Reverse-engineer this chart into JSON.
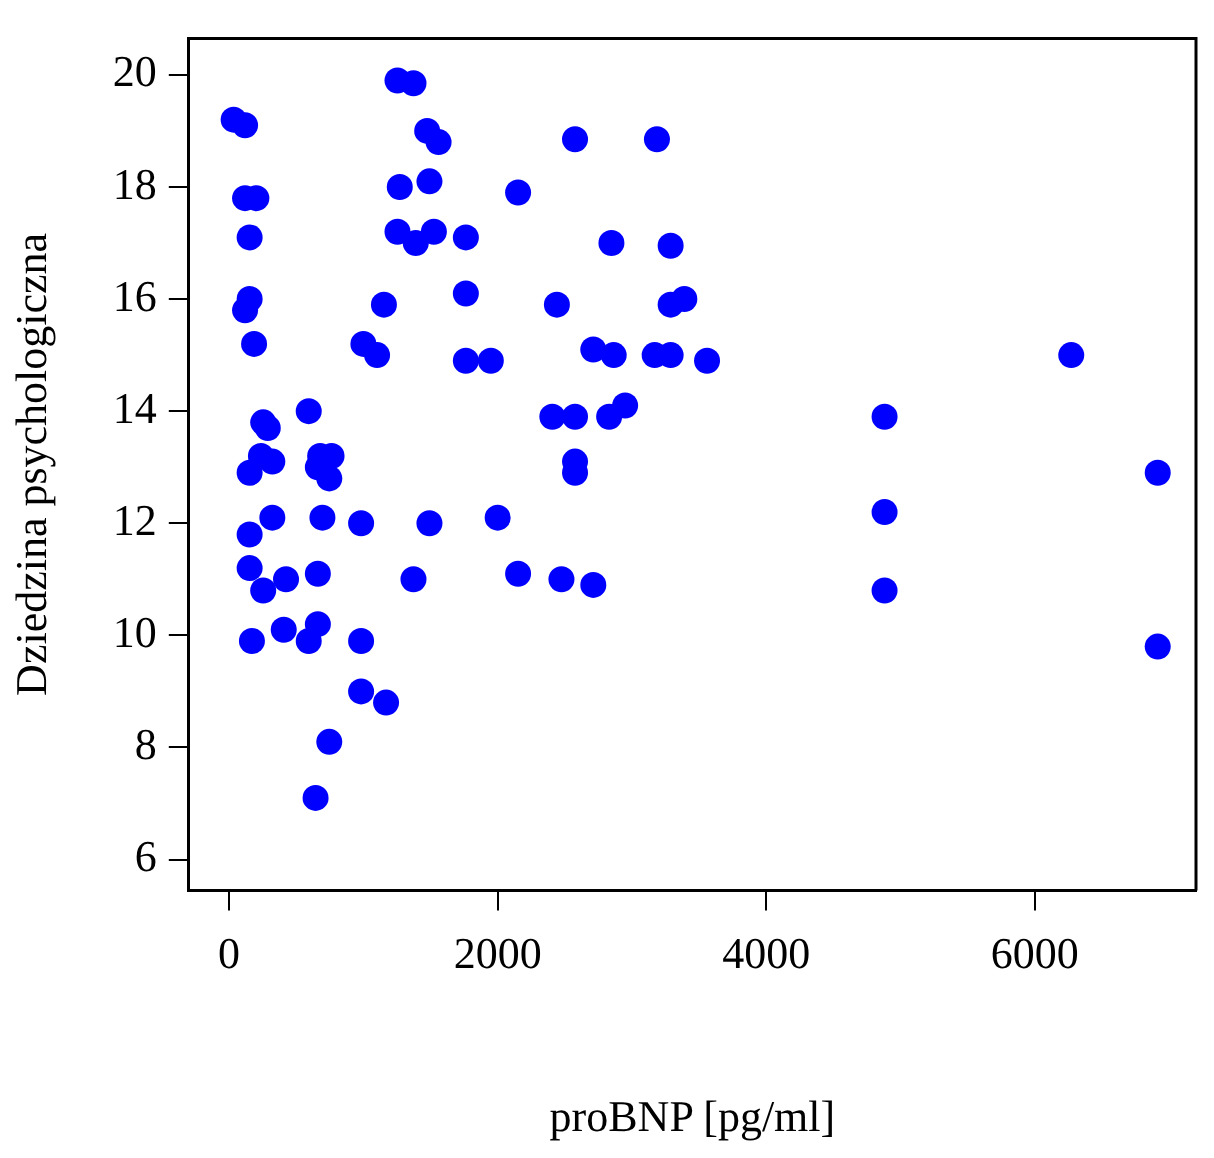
{
  "chart_data": {
    "type": "scatter",
    "xlabel": "proBNP [pg/ml]",
    "ylabel": "Dziedzina psychologiczna",
    "xlim": [
      -300,
      7200
    ],
    "ylim": [
      5.45,
      20.65
    ],
    "xticks": [
      0,
      2000,
      4000,
      6000
    ],
    "yticks": [
      6,
      8,
      10,
      12,
      14,
      16,
      18,
      20
    ],
    "grid": false,
    "legend": false,
    "marker": "circle",
    "series": [
      {
        "color": "#0000ff",
        "x": [
          1254,
          1373,
          34,
          119,
          1475,
          1560,
          203,
          119,
          1271,
          1492,
          2152,
          153,
          1254,
          1390,
          1525,
          1763,
          153,
          119,
          1153,
          1763,
          186,
          1000,
          1102,
          1763,
          1949,
          254,
          593,
          237,
          678,
          288,
          153,
          322,
          661,
          746,
          763,
          153,
          322,
          695,
          983,
          1492,
          2000,
          153,
          254,
          424,
          661,
          1373,
          2152,
          170,
          407,
          593,
          661,
          983,
          983,
          1169,
          746,
          644,
          2576,
          3186,
          2847,
          3288,
          2441,
          3288,
          3390,
          2712,
          2864,
          3169,
          3288,
          3559,
          6271,
          2407,
          2576,
          2830,
          2949,
          4881,
          2576,
          2576,
          6915,
          4881,
          2475,
          2712,
          4881,
          6915
        ],
        "values": [
          19.9,
          19.85,
          19.2,
          19.1,
          19.0,
          18.8,
          17.8,
          17.8,
          18.0,
          18.1,
          17.9,
          17.1,
          17.2,
          17.0,
          17.2,
          17.1,
          16.0,
          15.8,
          15.9,
          16.1,
          15.2,
          15.2,
          15.0,
          14.9,
          14.9,
          13.8,
          14.0,
          13.2,
          13.2,
          13.7,
          12.9,
          13.1,
          13.0,
          12.8,
          13.2,
          11.8,
          12.1,
          12.1,
          12.0,
          12.0,
          12.1,
          11.2,
          10.8,
          11.0,
          11.1,
          11.0,
          11.1,
          9.9,
          10.1,
          9.9,
          10.2,
          9.9,
          9.0,
          8.8,
          8.1,
          7.1,
          18.85,
          18.85,
          17.0,
          16.95,
          15.9,
          15.9,
          16.0,
          15.1,
          15.0,
          15.0,
          15.0,
          14.9,
          15.0,
          13.9,
          13.9,
          13.9,
          14.1,
          13.9,
          13.1,
          12.9,
          12.9,
          12.2,
          11.0,
          10.9,
          10.8,
          9.8
        ]
      }
    ]
  }
}
